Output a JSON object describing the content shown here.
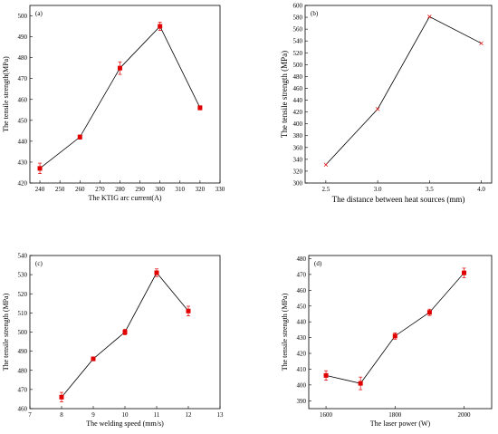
{
  "chart_data": [
    {
      "type": "line",
      "panel_label": "(a)",
      "xlabel": "The KTIG arc current(A)",
      "ylabel": "The tensile strength(MPa)",
      "xlim": [
        235,
        330
      ],
      "ylim": [
        420,
        505
      ],
      "xticks": [
        240,
        250,
        260,
        270,
        280,
        290,
        300,
        310,
        320,
        330
      ],
      "yticks": [
        420,
        430,
        440,
        450,
        460,
        470,
        480,
        490,
        500
      ],
      "x": [
        240,
        260,
        280,
        300,
        320
      ],
      "values": [
        427,
        442,
        475,
        495,
        456
      ],
      "errors": [
        2.5,
        1,
        3,
        2,
        1
      ],
      "marker": "square",
      "color": "#e00000"
    },
    {
      "type": "line",
      "panel_label": "(b)",
      "xlabel": "The distance between heat sources (mm)",
      "ylabel": "The tensile strength (MPa)",
      "xlim": [
        2.3,
        4.1
      ],
      "ylim": [
        300,
        600
      ],
      "xticks": [
        2.5,
        3.0,
        3.5,
        4.0
      ],
      "xticklabels": [
        "2.5",
        "3.0",
        "3.5",
        "4.0"
      ],
      "yticks": [
        300,
        320,
        340,
        360,
        380,
        400,
        420,
        440,
        460,
        480,
        500,
        520,
        540,
        560,
        580,
        600
      ],
      "x": [
        2.5,
        3.0,
        3.5,
        4.0
      ],
      "values": [
        331,
        425,
        581,
        536
      ],
      "errors": [
        0,
        0,
        0,
        0
      ],
      "marker": "cross",
      "color": "#e00000"
    },
    {
      "type": "line",
      "panel_label": "(c)",
      "xlabel": "The welding speed (mm/s)",
      "ylabel": "The tensile strength (MPa)",
      "xlim": [
        7,
        13
      ],
      "ylim": [
        460,
        540
      ],
      "xticks": [
        7,
        8,
        9,
        10,
        11,
        12,
        13
      ],
      "yticks": [
        460,
        470,
        480,
        490,
        500,
        510,
        520,
        530,
        540
      ],
      "x": [
        8,
        9,
        10,
        11,
        12
      ],
      "values": [
        466,
        486,
        500,
        531,
        511
      ],
      "errors": [
        2.5,
        1,
        1.5,
        2,
        2.5
      ],
      "marker": "square",
      "color": "#e00000"
    },
    {
      "type": "line",
      "panel_label": "(d)",
      "xlabel": "The laser power (W)",
      "ylabel": "The tensile strength (MPa)",
      "xlim": [
        1550,
        2080
      ],
      "ylim": [
        385,
        482
      ],
      "xticks": [
        1600,
        1800,
        2000
      ],
      "yticks": [
        390,
        400,
        410,
        420,
        430,
        440,
        450,
        460,
        470,
        480
      ],
      "x": [
        1600,
        1700,
        1800,
        1900,
        2000
      ],
      "values": [
        406,
        401,
        431,
        446,
        471
      ],
      "errors": [
        3,
        4,
        2,
        2,
        3
      ],
      "marker": "square",
      "color": "#e00000"
    }
  ]
}
